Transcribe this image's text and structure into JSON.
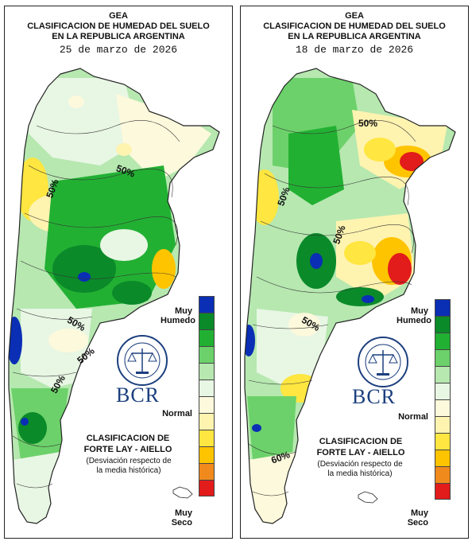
{
  "maps": [
    {
      "title1": "GEA",
      "title2": "CLASIFICACION DE HUMEDAD DEL SUELO",
      "title3": "EN LA REPUBLICA ARGENTINA",
      "date": "25 de marzo de 2026",
      "contour_labels": [
        "50%",
        "50%",
        "50%",
        "50%",
        "50%"
      ]
    },
    {
      "title1": "GEA",
      "title2": "CLASIFICACION DE HUMEDAD DEL SUELO",
      "title3": "EN LA REPUBLICA ARGENTINA",
      "date": "18 de marzo de 2026",
      "contour_labels": [
        "50%",
        "50%",
        "50%",
        "50%",
        "60%"
      ]
    }
  ],
  "legend": {
    "top_label_1": "Muy",
    "top_label_2": "Humedo",
    "mid_label": "Normal",
    "bottom_label_1": "Muy",
    "bottom_label_2": "Seco",
    "colors": [
      "#0a2fb5",
      "#0b8a2a",
      "#22b033",
      "#6cd16a",
      "#b6e8b0",
      "#e8f6e4",
      "#fcf9dc",
      "#fff3b0",
      "#ffe640",
      "#ffc400",
      "#f08a1c",
      "#e21b1b"
    ]
  },
  "brand": {
    "name": "BCR",
    "seal_text": "BOLSA DE COMERCIO DE ROSARIO"
  },
  "classification": {
    "line1": "CLASIFICACION DE",
    "line2": "FORTE LAY - AIELLO",
    "note1": "(Desviación respecto de",
    "note2": "la media histórica)"
  }
}
